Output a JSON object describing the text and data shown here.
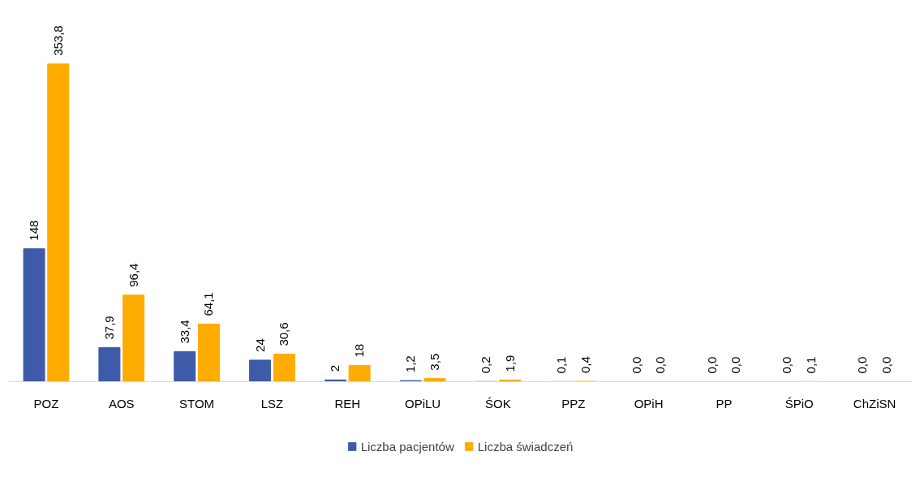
{
  "chart_data": {
    "type": "bar",
    "categories": [
      "POZ",
      "AOS",
      "STOM",
      "LSZ",
      "REH",
      "OPiLU",
      "ŚOK",
      "PPZ",
      "OPiH",
      "PP",
      "ŚPiO",
      "ChZiSN"
    ],
    "series": [
      {
        "name": "Liczba pacjentów",
        "color": "#3e5ba9",
        "values": [
          148,
          37.9,
          33.4,
          24,
          2,
          1.2,
          0.2,
          0.1,
          0.0,
          0.0,
          0.0,
          0.0
        ],
        "value_labels": [
          "148",
          "37,9",
          "33,4",
          "24",
          "2",
          "1,2",
          "0,2",
          "0,1",
          "0,0",
          "0,0",
          "0,0",
          "0,0"
        ]
      },
      {
        "name": "Liczba świadczeń",
        "color": "#ffac00",
        "values": [
          353.8,
          96.4,
          64.1,
          30.6,
          18,
          3.5,
          1.9,
          0.4,
          0.0,
          0.0,
          0.1,
          0.0
        ],
        "value_labels": [
          "353,8",
          "96,4",
          "64,1",
          "30,6",
          "18",
          "3,5",
          "1,9",
          "0,4",
          "0,0",
          "0,0",
          "0,1",
          "0,0"
        ]
      }
    ],
    "grid": false,
    "legend": "bottom"
  }
}
